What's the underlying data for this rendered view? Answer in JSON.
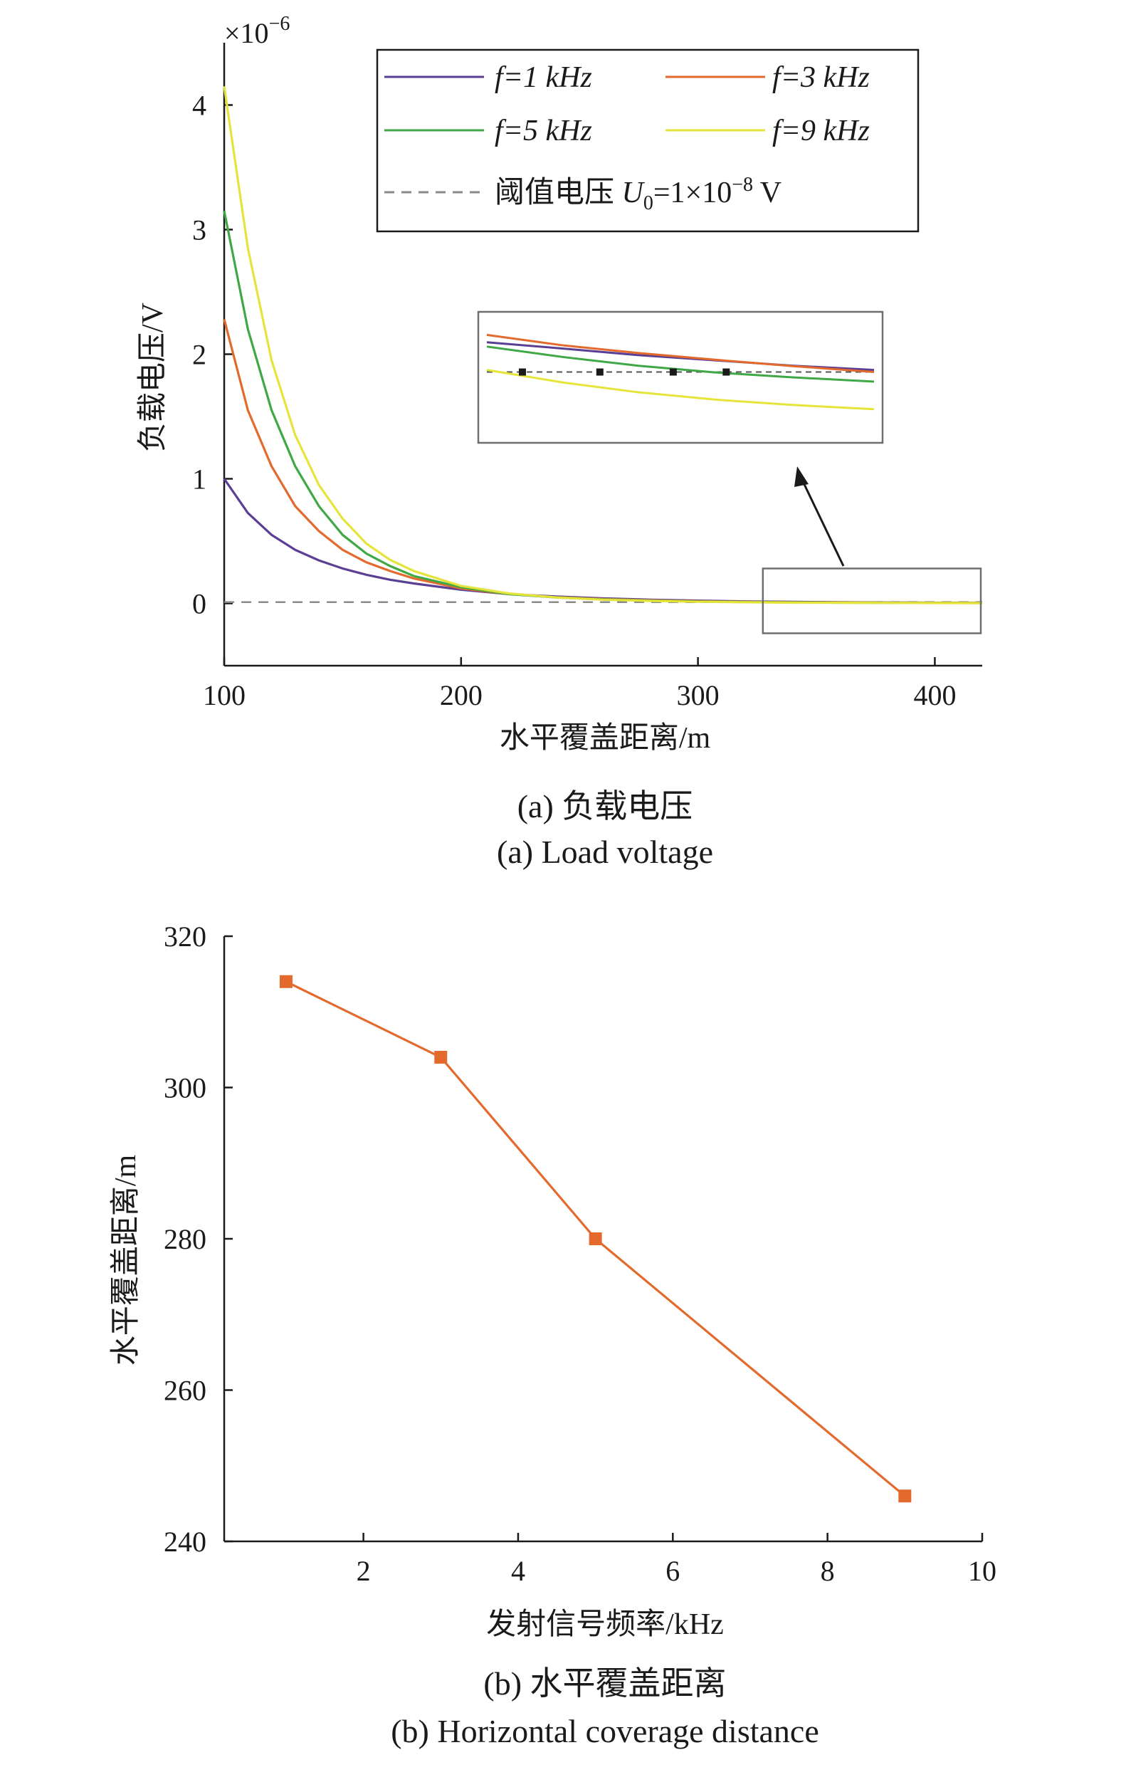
{
  "chart_data": [
    {
      "type": "line",
      "exponent_label": "×10",
      "exponent_power": "−6",
      "ylabel": "负载电压/V",
      "xlabel": "水平覆盖距离/m",
      "caption_cn": "(a) 负载电压",
      "caption_en": "(a) Load voltage",
      "xlim": [
        100,
        420
      ],
      "ylim": [
        -0.5,
        4.5
      ],
      "y_scale_multiplier": 1e-06,
      "x_ticks": [
        "100",
        "200",
        "300",
        "400"
      ],
      "y_ticks": [
        "0",
        "1",
        "2",
        "3",
        "4"
      ],
      "grid": false,
      "legend_position": "top-right",
      "x": [
        100,
        110,
        120,
        130,
        140,
        150,
        160,
        170,
        180,
        200,
        220,
        240,
        260,
        280,
        300,
        320,
        340,
        360,
        380,
        400,
        420
      ],
      "series": [
        {
          "name": "f=1 kHz",
          "color": "#5b3f95",
          "values": [
            1.0,
            0.725,
            0.55,
            0.43,
            0.345,
            0.28,
            0.23,
            0.19,
            0.16,
            0.11,
            0.075,
            0.055,
            0.04,
            0.03,
            0.022,
            0.016,
            0.012,
            0.009,
            0.007,
            0.005,
            0.004
          ]
        },
        {
          "name": "f=3 kHz",
          "color": "#e36a2c",
          "values": [
            2.28,
            1.55,
            1.1,
            0.78,
            0.58,
            0.43,
            0.33,
            0.26,
            0.2,
            0.12,
            0.075,
            0.05,
            0.035,
            0.025,
            0.018,
            0.013,
            0.01,
            0.008,
            0.006,
            0.005,
            0.004
          ]
        },
        {
          "name": "f=5 kHz",
          "color": "#3fa845",
          "values": [
            3.15,
            2.2,
            1.55,
            1.1,
            0.78,
            0.55,
            0.4,
            0.3,
            0.22,
            0.13,
            0.075,
            0.048,
            0.032,
            0.022,
            0.015,
            0.011,
            0.008,
            0.006,
            0.005,
            0.004,
            0.003
          ]
        },
        {
          "name": "f=9 kHz",
          "color": "#e4e43a",
          "values": [
            4.15,
            2.85,
            1.95,
            1.35,
            0.95,
            0.68,
            0.48,
            0.35,
            0.26,
            0.14,
            0.08,
            0.048,
            0.03,
            0.02,
            0.013,
            0.009,
            0.006,
            0.005,
            0.004,
            0.003,
            0.002
          ]
        }
      ],
      "threshold": {
        "label_prefix": "阈值电压 ",
        "label_symbol": "U",
        "label_sub": "0",
        "label_mid": "=1×10",
        "label_sup": "−8",
        "label_unit": " V",
        "value": 0.01,
        "color": "#8a8a8a"
      },
      "inset": {
        "x_range": [
          325,
          420
        ],
        "y_range": [
          -0.02,
          0.035
        ],
        "markers_x": [
          325,
          344,
          362,
          375
        ]
      }
    },
    {
      "type": "line",
      "ylabel": "水平覆盖距离/m",
      "xlabel": "发射信号频率/kHz",
      "caption_cn": "(b) 水平覆盖距离",
      "caption_en": "(b) Horizontal coverage distance",
      "xlim": [
        0.2,
        10
      ],
      "ylim": [
        240,
        320
      ],
      "x_ticks": [
        "2",
        "4",
        "6",
        "8",
        "10"
      ],
      "y_ticks": [
        "240",
        "260",
        "280",
        "300",
        "320"
      ],
      "grid": false,
      "series": [
        {
          "color": "#e36a2c",
          "x": [
            1,
            3,
            5,
            9
          ],
          "values": [
            314,
            304,
            280,
            246
          ]
        }
      ]
    }
  ]
}
